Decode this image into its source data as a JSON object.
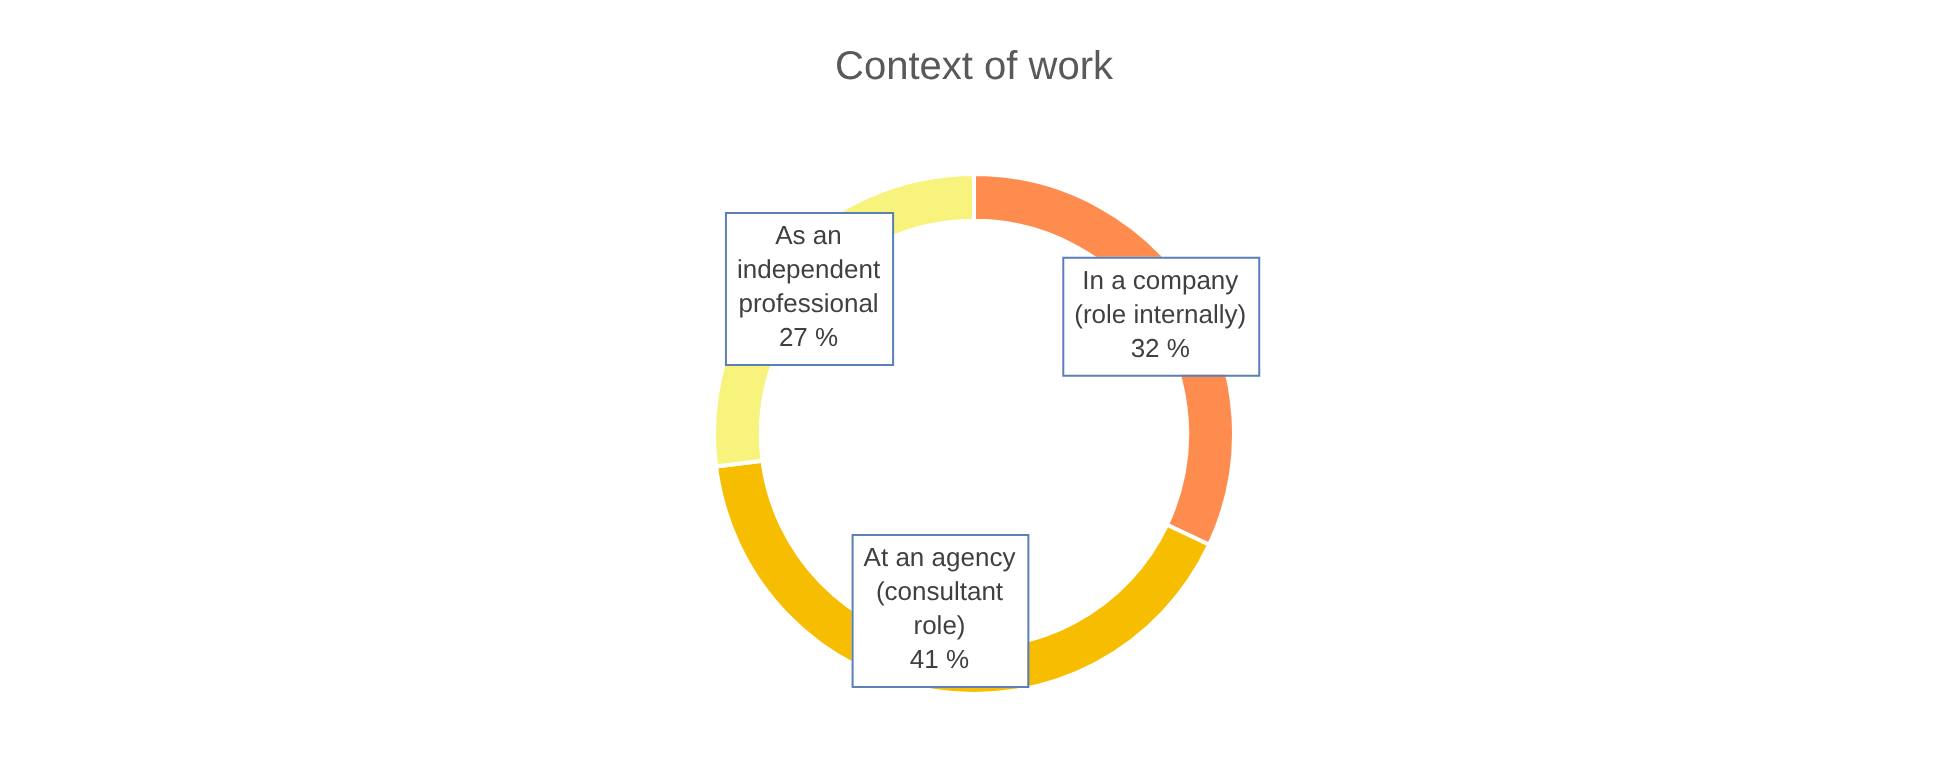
{
  "chart_data": {
    "type": "donut",
    "title": "Context of work",
    "categories": [
      "In a company (role internally)",
      "At an agency (consultant role)",
      "As an independent professional"
    ],
    "values": [
      32,
      41,
      27
    ],
    "colors": [
      "#ff8c4f",
      "#f7bd00",
      "#f8f37c"
    ],
    "value_labels": [
      "32 %",
      "41 %",
      "27 %"
    ],
    "legend": false
  }
}
